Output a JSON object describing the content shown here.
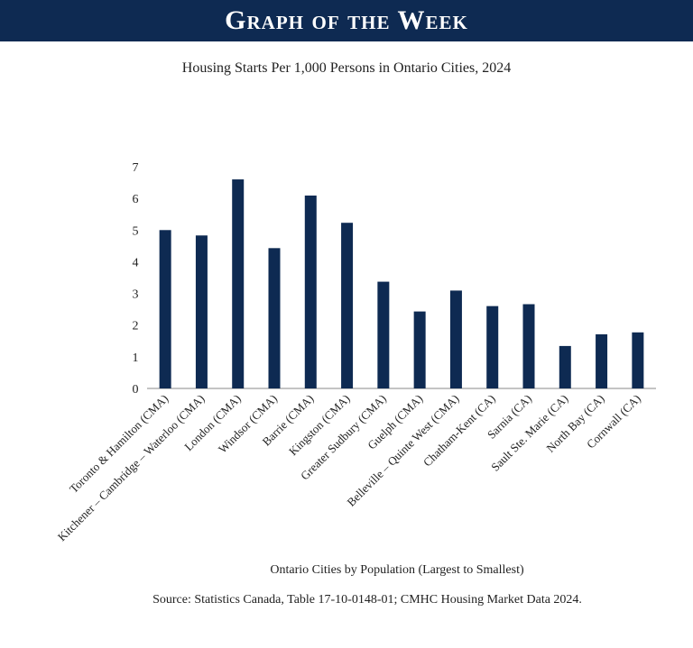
{
  "header": {
    "title": "Graph of the Week"
  },
  "chart_data": {
    "type": "bar",
    "title": "Housing Starts Per 1,000 Persons in Ontario Cities, 2024",
    "x_label": "Ontario Cities by Population (Largest to Smallest)",
    "source": "Source: Statistics Canada, Table 17-10-0148-01; CMHC Housing Market Data 2024.",
    "categories": [
      "Toronto & Hamilton (CMA)",
      "Kitchener – Cambridge – Waterloo (CMA)",
      "London (CMA)",
      "Windsor (CMA)",
      "Barrie (CMA)",
      "Kingston (CMA)",
      "Greater Sudbury (CMA)",
      "Guelph (CMA)",
      "Belleville – Quinte West (CMA)",
      "Chatham-Kent (CA)",
      "Sarnia (CA)",
      "Sault Ste. Marie (CA)",
      "North Bay (CA)",
      "Cornwall (CA)"
    ],
    "values": [
      5.0,
      4.83,
      6.6,
      4.43,
      6.09,
      5.23,
      3.37,
      2.43,
      3.09,
      2.6,
      2.66,
      1.34,
      1.71,
      1.77
    ],
    "color": "#0e2a52",
    "ylim": [
      0,
      7
    ],
    "yticks": [
      0,
      1,
      2,
      3,
      4,
      5,
      6,
      7
    ]
  }
}
